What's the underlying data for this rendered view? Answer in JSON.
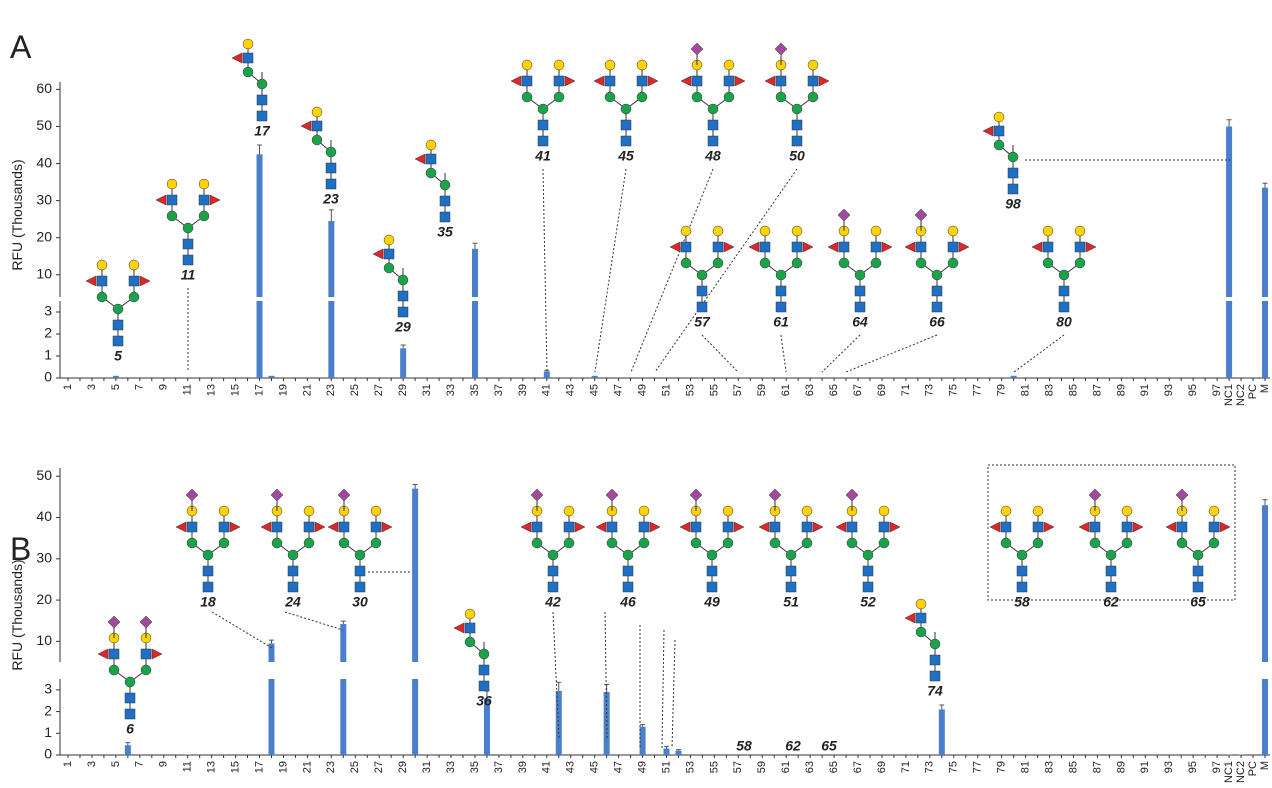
{
  "chart_data": [
    {
      "type": "bar",
      "title": "A",
      "y_label": "RFU (Thousands)",
      "color": "#4a7fcb",
      "categories": [
        "1",
        null,
        "3",
        null,
        "5",
        null,
        "7",
        null,
        "9",
        null,
        "11",
        null,
        "13",
        null,
        "15",
        null,
        "17",
        null,
        "19",
        null,
        "21",
        null,
        "23",
        null,
        "25",
        null,
        "27",
        null,
        "29",
        null,
        "31",
        null,
        "33",
        null,
        "35",
        null,
        "37",
        null,
        "39",
        null,
        "41",
        null,
        "43",
        null,
        "45",
        null,
        "47",
        null,
        "49",
        null,
        "51",
        null,
        "53",
        null,
        "55",
        null,
        "57",
        null,
        "59",
        null,
        "61",
        null,
        "63",
        null,
        "65",
        null,
        "67",
        null,
        "69",
        null,
        "71",
        null,
        "73",
        null,
        "75",
        null,
        "77",
        null,
        "79",
        null,
        "81",
        null,
        "83",
        null,
        "85",
        null,
        "87",
        null,
        "89",
        null,
        "91",
        null,
        "93",
        null,
        "95",
        null,
        "97",
        "NC1",
        "NC2",
        "PC",
        "M"
      ],
      "values": [
        0,
        0,
        0,
        0,
        0.1,
        0,
        0,
        0,
        0,
        0,
        0,
        0,
        0,
        0,
        0,
        0,
        42.5,
        0.1,
        0,
        0,
        0,
        0,
        24.5,
        0,
        0,
        0,
        0,
        0,
        1.35,
        0,
        0,
        0,
        0,
        0,
        17,
        0,
        0,
        0,
        0,
        0,
        0.3,
        0,
        0,
        0,
        0.1,
        0,
        0,
        0,
        0,
        0,
        0,
        0,
        0,
        0,
        0,
        0,
        0,
        0,
        0,
        0,
        0,
        0,
        0,
        0,
        0,
        0,
        0,
        0,
        0,
        0,
        0,
        0,
        0,
        0,
        0,
        0,
        0,
        0,
        0,
        0.1,
        0,
        0,
        0,
        0,
        0,
        0,
        0,
        0,
        0,
        0,
        0,
        0,
        0,
        0,
        0,
        0,
        0,
        50,
        0,
        0,
        33.5
      ],
      "errors": [
        0,
        0,
        0,
        0,
        0,
        0,
        0,
        0,
        0,
        0,
        0,
        0,
        0,
        0,
        0,
        0,
        2.5,
        0,
        0,
        0,
        0,
        0,
        3,
        0,
        0,
        0,
        0,
        0,
        0.15,
        0,
        0,
        0,
        0,
        0,
        1.5,
        0,
        0,
        0,
        0,
        0,
        0.05,
        0,
        0,
        0,
        0,
        0,
        0,
        0,
        0,
        0,
        0,
        0,
        0,
        0,
        0,
        0,
        0,
        0,
        0,
        0,
        0,
        0,
        0,
        0,
        0,
        0,
        0,
        0,
        0,
        0,
        0,
        0,
        0,
        0,
        0,
        0,
        0,
        0,
        0,
        0,
        0,
        0,
        0,
        0,
        0,
        0,
        0,
        0,
        0,
        0,
        0,
        0,
        0,
        0,
        0,
        0,
        0,
        1.8,
        0,
        0,
        1.2
      ],
      "ylim_lower": [
        0,
        3.5
      ],
      "yticks_lower": [
        0,
        1,
        2,
        3
      ],
      "ylim_upper": [
        4,
        62
      ],
      "yticks_upper": [
        10,
        20,
        30,
        40,
        50,
        60
      ],
      "annotations": [
        "5",
        "11",
        "17",
        "23",
        "29",
        "35",
        "41",
        "45",
        "48",
        "50",
        "57",
        "61",
        "64",
        "66",
        "80",
        "98"
      ]
    },
    {
      "type": "bar",
      "title": "B",
      "y_label": "RFU (Thousands)",
      "color": "#4a7fcb",
      "categories": [
        "1",
        null,
        "3",
        null,
        "5",
        null,
        "7",
        null,
        "9",
        null,
        "11",
        null,
        "13",
        null,
        "15",
        null,
        "17",
        null,
        "19",
        null,
        "21",
        null,
        "23",
        null,
        "25",
        null,
        "27",
        null,
        "29",
        null,
        "31",
        null,
        "33",
        null,
        "35",
        null,
        "37",
        null,
        "39",
        null,
        "41",
        null,
        "43",
        null,
        "45",
        null,
        "47",
        null,
        "49",
        null,
        "51",
        null,
        "53",
        null,
        "55",
        null,
        "57",
        null,
        "59",
        null,
        "61",
        null,
        "63",
        null,
        "65",
        null,
        "67",
        null,
        "69",
        null,
        "71",
        null,
        "73",
        null,
        "75",
        null,
        "77",
        null,
        "79",
        null,
        "81",
        null,
        "83",
        null,
        "85",
        null,
        "87",
        null,
        "89",
        null,
        "91",
        null,
        "93",
        null,
        "95",
        null,
        "97",
        "NC1",
        "NC2",
        "PC",
        "M"
      ],
      "values": [
        0,
        0,
        0,
        0,
        0,
        0.45,
        0,
        0,
        0,
        0,
        0.02,
        0,
        0,
        0,
        0,
        0,
        0,
        9.5,
        0,
        0,
        0,
        0,
        0,
        14.2,
        0,
        0,
        0,
        0,
        0,
        47,
        0,
        0,
        0,
        0,
        0,
        2.6,
        0,
        0,
        0,
        0,
        0,
        2.95,
        0,
        0,
        0,
        2.9,
        0,
        0,
        1.3,
        0,
        0.3,
        0.2,
        0,
        0,
        0,
        0,
        0,
        0,
        0,
        0,
        0,
        0,
        0,
        0,
        0,
        0,
        0,
        0,
        0,
        0,
        0,
        0,
        0,
        2.1,
        0,
        0,
        0,
        0,
        0,
        0,
        0,
        0,
        0,
        0,
        0,
        0,
        0,
        0,
        0,
        0,
        0,
        0,
        0,
        0,
        0,
        0,
        0,
        0.02,
        0.02,
        0,
        43
      ],
      "errors": [
        0,
        0,
        0,
        0,
        0,
        0.12,
        0,
        0,
        0,
        0,
        0,
        0,
        0,
        0,
        0,
        0,
        0,
        0.8,
        0,
        0,
        0,
        0,
        0,
        0.7,
        0,
        0,
        0,
        0,
        0,
        1,
        0,
        0,
        0,
        0,
        0,
        0.35,
        0,
        0,
        0,
        0,
        0,
        0.4,
        0,
        0,
        0,
        0.35,
        0,
        0,
        0.1,
        0,
        0.1,
        0.05,
        0,
        0,
        0,
        0,
        0,
        0,
        0,
        0,
        0,
        0,
        0,
        0,
        0,
        0,
        0,
        0,
        0,
        0,
        0,
        0,
        0,
        0.2,
        0,
        0,
        0,
        0,
        0,
        0,
        0,
        0,
        0,
        0,
        0,
        0,
        0,
        0,
        0,
        0,
        0,
        0,
        0,
        0,
        0,
        0,
        0,
        0,
        0,
        0,
        1.3
      ],
      "ylim_lower": [
        0,
        3.5
      ],
      "yticks_lower": [
        0,
        1,
        2,
        3
      ],
      "ylim_upper": [
        5,
        52
      ],
      "yticks_upper": [
        10,
        20,
        30,
        40,
        50
      ],
      "annotations": [
        "6",
        "18",
        "24",
        "30",
        "36",
        "42",
        "46",
        "49",
        "51",
        "52",
        "74",
        "58",
        "62",
        "65",
        "58",
        "62",
        "65"
      ]
    }
  ]
}
